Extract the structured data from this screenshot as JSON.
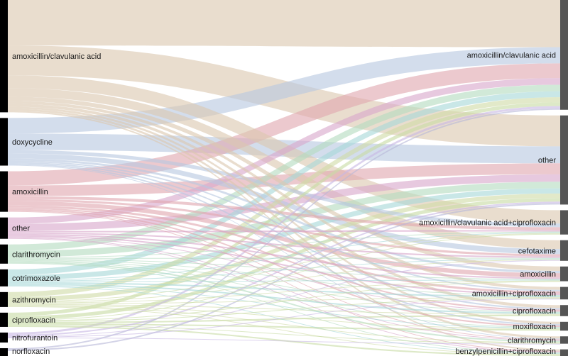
{
  "chart_data": {
    "type": "sankey",
    "title": "",
    "left_nodes": [
      {
        "name": "amoxicillin/clavulanic acid",
        "value": 158
      },
      {
        "name": "doxycycline",
        "value": 67
      },
      {
        "name": "amoxicillin",
        "value": 57
      },
      {
        "name": "other",
        "value": 30
      },
      {
        "name": "clarithromycin",
        "value": 27
      },
      {
        "name": "cotrimoxazole",
        "value": 24
      },
      {
        "name": "azithromycin",
        "value": 21
      },
      {
        "name": "ciprofloxacin",
        "value": 20
      },
      {
        "name": "nitrofurantoin",
        "value": 14
      },
      {
        "name": "norfloxacin",
        "value": 11
      }
    ],
    "right_nodes": [
      {
        "name": "amoxicillin/clavulanic acid",
        "value": 149
      },
      {
        "name": "other",
        "value": 121
      },
      {
        "name": "amoxicillin/clavulanic acid+ciprofloxacin",
        "value": 33
      },
      {
        "name": "cefotaxime",
        "value": 28
      },
      {
        "name": "amoxicillin",
        "value": 20
      },
      {
        "name": "amoxicillin+ciprofloxacin",
        "value": 17
      },
      {
        "name": "ciprofloxacin",
        "value": 15
      },
      {
        "name": "moxifloxacin",
        "value": 12
      },
      {
        "name": "clarithromycin",
        "value": 10
      },
      {
        "name": "benzylpenicillin+ciprofloxacin",
        "value": 9
      }
    ],
    "links": [
      {
        "source": "amoxicillin/clavulanic acid",
        "target": "amoxicillin/clavulanic acid",
        "value": 64
      },
      {
        "source": "amoxicillin/clavulanic acid",
        "target": "other",
        "value": 42
      },
      {
        "source": "amoxicillin/clavulanic acid",
        "target": "amoxicillin/clavulanic acid+ciprofloxacin",
        "value": 18
      },
      {
        "source": "amoxicillin/clavulanic acid",
        "target": "cefotaxime",
        "value": 12
      },
      {
        "source": "amoxicillin/clavulanic acid",
        "target": "amoxicillin",
        "value": 6
      },
      {
        "source": "amoxicillin/clavulanic acid",
        "target": "amoxicillin+ciprofloxacin",
        "value": 4
      },
      {
        "source": "amoxicillin/clavulanic acid",
        "target": "ciprofloxacin",
        "value": 4
      },
      {
        "source": "amoxicillin/clavulanic acid",
        "target": "moxifloxacin",
        "value": 3
      },
      {
        "source": "amoxicillin/clavulanic acid",
        "target": "clarithromycin",
        "value": 3
      },
      {
        "source": "amoxicillin/clavulanic acid",
        "target": "benzylpenicillin+ciprofloxacin",
        "value": 2
      },
      {
        "source": "doxycycline",
        "target": "amoxicillin/clavulanic acid",
        "value": 22
      },
      {
        "source": "doxycycline",
        "target": "other",
        "value": 23
      },
      {
        "source": "doxycycline",
        "target": "amoxicillin/clavulanic acid+ciprofloxacin",
        "value": 5
      },
      {
        "source": "doxycycline",
        "target": "cefotaxime",
        "value": 7
      },
      {
        "source": "doxycycline",
        "target": "amoxicillin",
        "value": 3
      },
      {
        "source": "doxycycline",
        "target": "amoxicillin+ciprofloxacin",
        "value": 2
      },
      {
        "source": "doxycycline",
        "target": "ciprofloxacin",
        "value": 2
      },
      {
        "source": "doxycycline",
        "target": "moxifloxacin",
        "value": 2
      },
      {
        "source": "doxycycline",
        "target": "clarithromycin",
        "value": 1
      },
      {
        "source": "amoxicillin",
        "target": "amoxicillin/clavulanic acid",
        "value": 20
      },
      {
        "source": "amoxicillin",
        "target": "other",
        "value": 15
      },
      {
        "source": "amoxicillin",
        "target": "amoxicillin/clavulanic acid+ciprofloxacin",
        "value": 4
      },
      {
        "source": "amoxicillin",
        "target": "cefotaxime",
        "value": 3
      },
      {
        "source": "amoxicillin",
        "target": "amoxicillin",
        "value": 6
      },
      {
        "source": "amoxicillin",
        "target": "amoxicillin+ciprofloxacin",
        "value": 3
      },
      {
        "source": "amoxicillin",
        "target": "ciprofloxacin",
        "value": 2
      },
      {
        "source": "amoxicillin",
        "target": "moxifloxacin",
        "value": 2
      },
      {
        "source": "amoxicillin",
        "target": "clarithromycin",
        "value": 1
      },
      {
        "source": "amoxicillin",
        "target": "benzylpenicillin+ciprofloxacin",
        "value": 1
      },
      {
        "source": "other",
        "target": "amoxicillin/clavulanic acid",
        "value": 9
      },
      {
        "source": "other",
        "target": "other",
        "value": 10
      },
      {
        "source": "other",
        "target": "amoxicillin/clavulanic acid+ciprofloxacin",
        "value": 2
      },
      {
        "source": "other",
        "target": "cefotaxime",
        "value": 2
      },
      {
        "source": "other",
        "target": "amoxicillin",
        "value": 2
      },
      {
        "source": "other",
        "target": "amoxicillin+ciprofloxacin",
        "value": 2
      },
      {
        "source": "other",
        "target": "ciprofloxacin",
        "value": 1
      },
      {
        "source": "other",
        "target": "clarithromycin",
        "value": 1
      },
      {
        "source": "other",
        "target": "benzylpenicillin+ciprofloxacin",
        "value": 1
      },
      {
        "source": "clarithromycin",
        "target": "amoxicillin/clavulanic acid",
        "value": 9
      },
      {
        "source": "clarithromycin",
        "target": "other",
        "value": 9
      },
      {
        "source": "clarithromycin",
        "target": "amoxicillin/clavulanic acid+ciprofloxacin",
        "value": 1
      },
      {
        "source": "clarithromycin",
        "target": "cefotaxime",
        "value": 1
      },
      {
        "source": "clarithromycin",
        "target": "amoxicillin",
        "value": 1
      },
      {
        "source": "clarithromycin",
        "target": "amoxicillin+ciprofloxacin",
        "value": 1
      },
      {
        "source": "clarithromycin",
        "target": "ciprofloxacin",
        "value": 1
      },
      {
        "source": "clarithromycin",
        "target": "moxifloxacin",
        "value": 1
      },
      {
        "source": "clarithromycin",
        "target": "clarithromycin",
        "value": 2
      },
      {
        "source": "clarithromycin",
        "target": "benzylpenicillin+ciprofloxacin",
        "value": 1
      },
      {
        "source": "cotrimoxazole",
        "target": "amoxicillin/clavulanic acid",
        "value": 8
      },
      {
        "source": "cotrimoxazole",
        "target": "other",
        "value": 7
      },
      {
        "source": "cotrimoxazole",
        "target": "amoxicillin/clavulanic acid+ciprofloxacin",
        "value": 1
      },
      {
        "source": "cotrimoxazole",
        "target": "cefotaxime",
        "value": 1
      },
      {
        "source": "cotrimoxazole",
        "target": "amoxicillin",
        "value": 1
      },
      {
        "source": "cotrimoxazole",
        "target": "amoxicillin+ciprofloxacin",
        "value": 2
      },
      {
        "source": "cotrimoxazole",
        "target": "ciprofloxacin",
        "value": 2
      },
      {
        "source": "cotrimoxazole",
        "target": "moxifloxacin",
        "value": 1
      },
      {
        "source": "cotrimoxazole",
        "target": "benzylpenicillin+ciprofloxacin",
        "value": 1
      },
      {
        "source": "azithromycin",
        "target": "amoxicillin/clavulanic acid",
        "value": 7
      },
      {
        "source": "azithromycin",
        "target": "other",
        "value": 6
      },
      {
        "source": "azithromycin",
        "target": "amoxicillin/clavulanic acid+ciprofloxacin",
        "value": 1
      },
      {
        "source": "azithromycin",
        "target": "cefotaxime",
        "value": 1
      },
      {
        "source": "azithromycin",
        "target": "amoxicillin",
        "value": 1
      },
      {
        "source": "azithromycin",
        "target": "amoxicillin+ciprofloxacin",
        "value": 1
      },
      {
        "source": "azithromycin",
        "target": "ciprofloxacin",
        "value": 1
      },
      {
        "source": "azithromycin",
        "target": "moxifloxacin",
        "value": 1
      },
      {
        "source": "azithromycin",
        "target": "clarithromycin",
        "value": 1
      },
      {
        "source": "azithromycin",
        "target": "benzylpenicillin+ciprofloxacin",
        "value": 1
      },
      {
        "source": "ciprofloxacin",
        "target": "amoxicillin/clavulanic acid",
        "value": 5
      },
      {
        "source": "ciprofloxacin",
        "target": "other",
        "value": 5
      },
      {
        "source": "ciprofloxacin",
        "target": "amoxicillin/clavulanic acid+ciprofloxacin",
        "value": 1
      },
      {
        "source": "ciprofloxacin",
        "target": "amoxicillin",
        "value": 1
      },
      {
        "source": "ciprofloxacin",
        "target": "amoxicillin+ciprofloxacin",
        "value": 1
      },
      {
        "source": "ciprofloxacin",
        "target": "ciprofloxacin",
        "value": 2
      },
      {
        "source": "ciprofloxacin",
        "target": "moxifloxacin",
        "value": 2
      },
      {
        "source": "ciprofloxacin",
        "target": "clarithromycin",
        "value": 1
      },
      {
        "source": "ciprofloxacin",
        "target": "benzylpenicillin+ciprofloxacin",
        "value": 2
      },
      {
        "source": "nitrofurantoin",
        "target": "amoxicillin/clavulanic acid",
        "value": 3
      },
      {
        "source": "nitrofurantoin",
        "target": "other",
        "value": 2
      },
      {
        "source": "nitrofurantoin",
        "target": "cefotaxime",
        "value": 1
      },
      {
        "source": "nitrofurantoin",
        "target": "amoxicillin+ciprofloxacin",
        "value": 1
      },
      {
        "source": "nitrofurantoin",
        "target": "clarithromycin",
        "value": 1
      },
      {
        "source": "norfloxacin",
        "target": "amoxicillin/clavulanic acid",
        "value": 2
      },
      {
        "source": "norfloxacin",
        "target": "other",
        "value": 2
      }
    ],
    "colors": {
      "amoxicillin/clavulanic acid": "#dcc8b0",
      "doxycycline": "#b8c8e0",
      "amoxicillin": "#e0a8b0",
      "other": "#d8a8cc",
      "clarithromycin": "#b4dcc0",
      "cotrimoxazole": "#a8d8d8",
      "azithromycin": "#d0dca8",
      "ciprofloxacin": "#c8dca4",
      "nitrofurantoin": "#c8b8e4",
      "norfloxacin": "#b8b8d8"
    },
    "node_colors": {
      "left": "#000000",
      "right": "#555555"
    },
    "link_opacity": 0.62
  }
}
